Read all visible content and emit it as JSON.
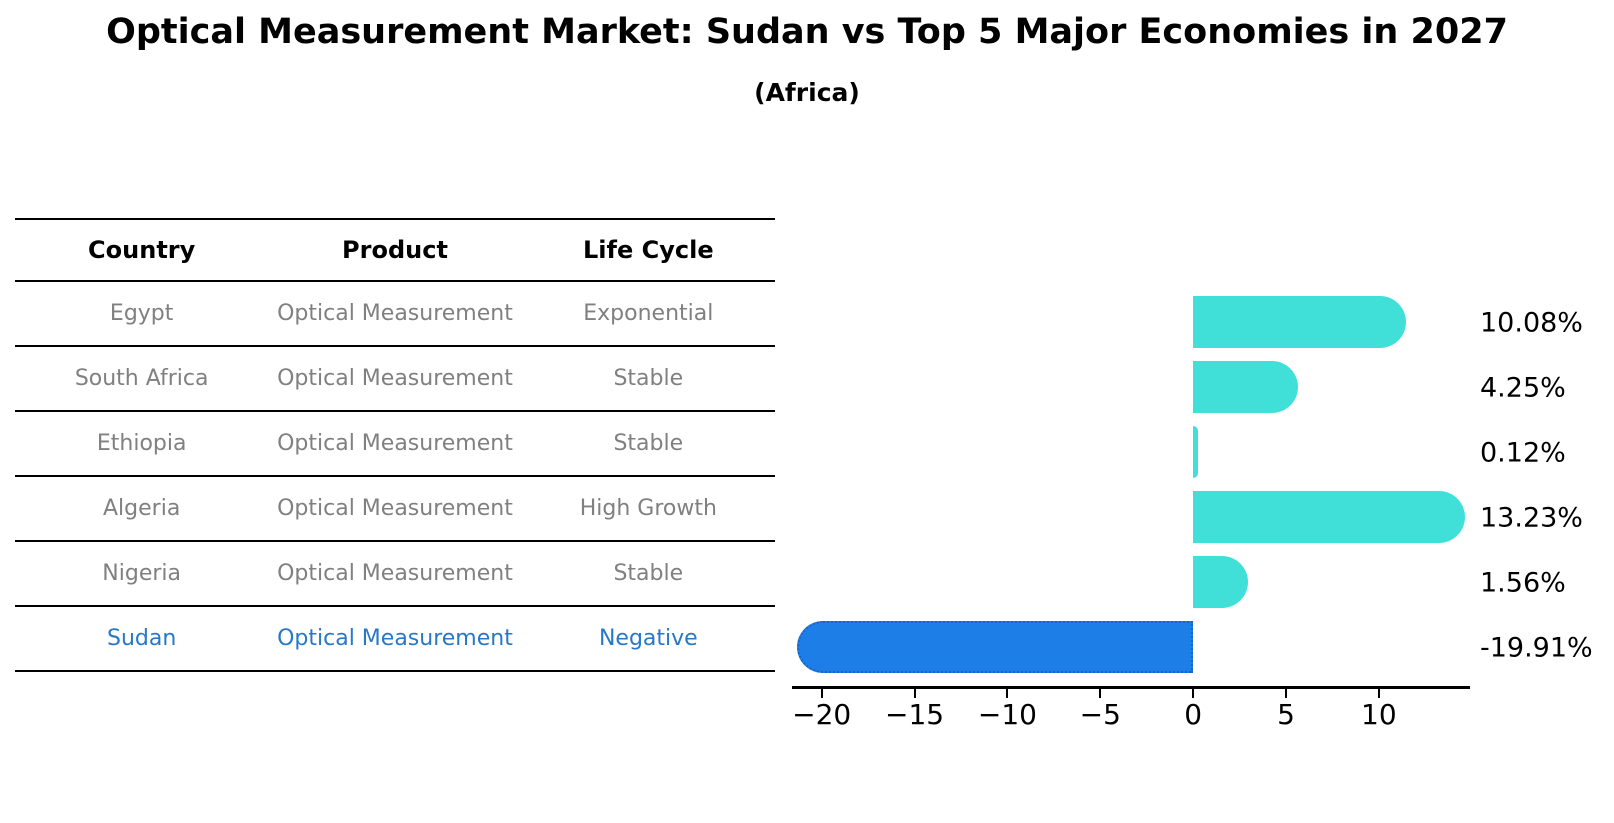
{
  "header": {
    "title": "Optical Measurement Market: Sudan vs Top 5 Major Economies in 2027",
    "subtitle": "(Africa)"
  },
  "table": {
    "columns": [
      "Country",
      "Product",
      "Life Cycle"
    ],
    "rows": [
      {
        "country": "Egypt",
        "product": "Optical Measurement",
        "life_cycle": "Exponential",
        "highlight": false
      },
      {
        "country": "South Africa",
        "product": "Optical Measurement",
        "life_cycle": "Stable",
        "highlight": false
      },
      {
        "country": "Ethiopia",
        "product": "Optical Measurement",
        "life_cycle": "Stable",
        "highlight": false
      },
      {
        "country": "Algeria",
        "product": "Optical Measurement",
        "life_cycle": "High Growth",
        "highlight": false
      },
      {
        "country": "Nigeria",
        "product": "Optical Measurement",
        "life_cycle": "Stable",
        "highlight": false
      },
      {
        "country": "Sudan",
        "product": "Optical Measurement",
        "life_cycle": "Negative",
        "highlight": true
      }
    ]
  },
  "chart_data": {
    "type": "bar",
    "orientation": "horizontal",
    "title": "Optical Measurement Market: Sudan vs Top 5 Major Economies in 2027",
    "subtitle": "(Africa)",
    "categories": [
      "Egypt",
      "South Africa",
      "Ethiopia",
      "Algeria",
      "Nigeria",
      "Sudan"
    ],
    "values": [
      10.08,
      4.25,
      0.12,
      13.23,
      1.56,
      -19.91
    ],
    "value_labels": [
      "10.08%",
      "4.25%",
      "0.12%",
      "13.23%",
      "1.56%",
      "-19.91%"
    ],
    "xlim": [
      -21.6,
      14.8
    ],
    "xticks": [
      -20,
      -15,
      -10,
      -5,
      0,
      5,
      10
    ],
    "xtick_labels": [
      "−20",
      "−15",
      "−10",
      "−5",
      "0",
      "5",
      "10"
    ],
    "grid": false,
    "legend": false,
    "highlight_index": 5
  },
  "colors": {
    "bar": "#40E0D8",
    "highlight_bar": "#1E7EE8",
    "highlight_border": "#1565C8",
    "row_text": "#808080",
    "highlight_text": "#2878C8",
    "text": "#000000"
  }
}
